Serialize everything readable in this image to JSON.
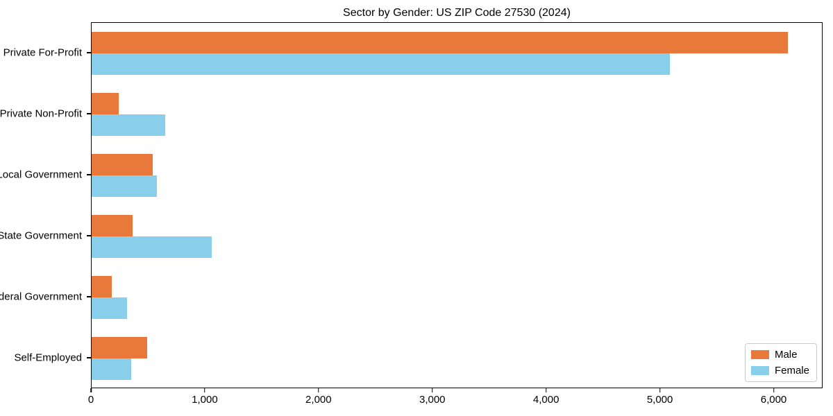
{
  "chart_data": {
    "type": "bar",
    "orientation": "horizontal",
    "title": "Sector by Gender: US ZIP Code 27530 (2024)",
    "xlabel": "",
    "ylabel": "",
    "grid": false,
    "legend_position": "lower right",
    "categories": [
      "Private For-Profit",
      "Private Non-Profit",
      "Local Government",
      "State Government",
      "Federal Government",
      "Self-Employed"
    ],
    "series": [
      {
        "name": "Male",
        "color": "#E8793B",
        "values": [
          6130,
          240,
          540,
          360,
          180,
          490
        ]
      },
      {
        "name": "Female",
        "color": "#89CEEA",
        "values": [
          5090,
          645,
          575,
          1060,
          310,
          350
        ]
      }
    ],
    "xlim": [
      0,
      6430
    ],
    "xticks": [
      {
        "value": 0,
        "label": "0"
      },
      {
        "value": 1000,
        "label": "1,000"
      },
      {
        "value": 2000,
        "label": "2,000"
      },
      {
        "value": 3000,
        "label": "3,000"
      },
      {
        "value": 4000,
        "label": "4,000"
      },
      {
        "value": 5000,
        "label": "5,000"
      },
      {
        "value": 6000,
        "label": "6,000"
      }
    ]
  }
}
